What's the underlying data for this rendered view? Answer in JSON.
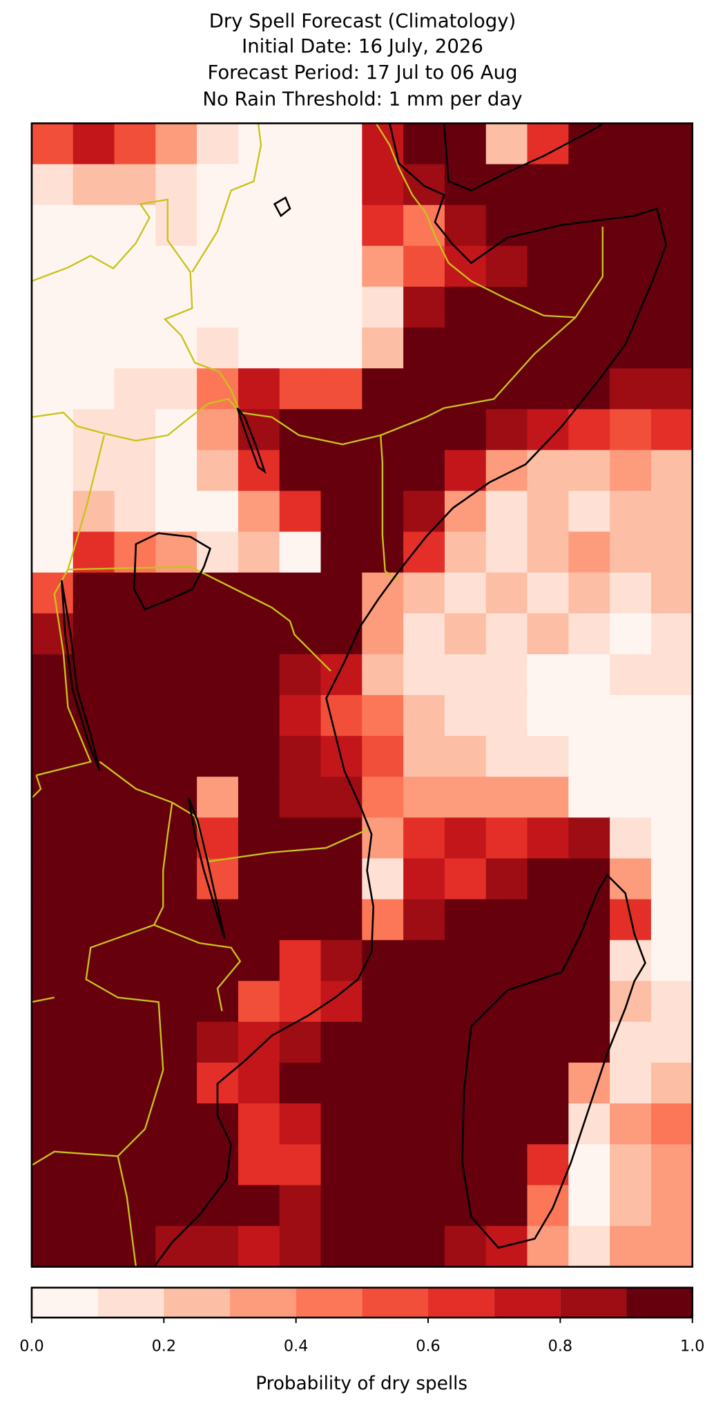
{
  "chart_data": {
    "type": "map-grid",
    "title": [
      "Dry Spell Forecast (Climatology)",
      "Initial Date: 16 July, 2026",
      "Forecast Period: 17 Jul to 06 Aug",
      "No Rain Threshold: 1 mm per day"
    ],
    "grid": [
      [
        0.55,
        0.75,
        0.55,
        0.35,
        0.15,
        0.05,
        0.05,
        0.05,
        0.75,
        0.95,
        0.95,
        0.25,
        0.65,
        0.95,
        0.95,
        0.95
      ],
      [
        0.15,
        0.25,
        0.25,
        0.15,
        0.05,
        0.05,
        0.05,
        0.05,
        0.75,
        0.85,
        0.95,
        0.95,
        0.95,
        0.95,
        0.95,
        0.95
      ],
      [
        0.05,
        0.05,
        0.05,
        0.15,
        0.05,
        0.05,
        0.05,
        0.05,
        0.65,
        0.45,
        0.85,
        0.95,
        0.95,
        0.95,
        0.95,
        0.95
      ],
      [
        0.05,
        0.05,
        0.05,
        0.05,
        0.05,
        0.05,
        0.05,
        0.05,
        0.35,
        0.55,
        0.75,
        0.85,
        0.95,
        0.95,
        0.95,
        0.95
      ],
      [
        0.05,
        0.05,
        0.05,
        0.05,
        0.05,
        0.05,
        0.05,
        0.05,
        0.15,
        0.85,
        0.95,
        0.95,
        0.95,
        0.95,
        0.95,
        0.95
      ],
      [
        0.05,
        0.05,
        0.05,
        0.05,
        0.15,
        0.05,
        0.05,
        0.05,
        0.25,
        0.95,
        0.95,
        0.95,
        0.95,
        0.95,
        0.95,
        0.95
      ],
      [
        0.05,
        0.05,
        0.15,
        0.15,
        0.45,
        0.75,
        0.55,
        0.55,
        0.95,
        0.95,
        0.95,
        0.95,
        0.95,
        0.95,
        0.85,
        0.85
      ],
      [
        0.05,
        0.15,
        0.15,
        0.05,
        0.35,
        0.85,
        0.95,
        0.95,
        0.95,
        0.95,
        0.95,
        0.85,
        0.75,
        0.65,
        0.55,
        0.65
      ],
      [
        0.05,
        0.15,
        0.15,
        0.05,
        0.25,
        0.65,
        0.95,
        0.95,
        0.95,
        0.95,
        0.75,
        0.35,
        0.25,
        0.25,
        0.35,
        0.25
      ],
      [
        0.05,
        0.25,
        0.15,
        0.05,
        0.05,
        0.35,
        0.65,
        0.95,
        0.95,
        0.85,
        0.35,
        0.15,
        0.25,
        0.15,
        0.25,
        0.25
      ],
      [
        0.05,
        0.65,
        0.45,
        0.35,
        0.15,
        0.25,
        0.05,
        0.95,
        0.95,
        0.65,
        0.25,
        0.15,
        0.25,
        0.35,
        0.25,
        0.25
      ],
      [
        0.55,
        0.95,
        0.95,
        0.95,
        0.95,
        0.95,
        0.95,
        0.95,
        0.35,
        0.25,
        0.15,
        0.25,
        0.15,
        0.25,
        0.15,
        0.25
      ],
      [
        0.85,
        0.95,
        0.95,
        0.95,
        0.95,
        0.95,
        0.95,
        0.95,
        0.35,
        0.15,
        0.25,
        0.15,
        0.25,
        0.15,
        0.05,
        0.15
      ],
      [
        0.95,
        0.95,
        0.95,
        0.95,
        0.95,
        0.95,
        0.85,
        0.75,
        0.25,
        0.15,
        0.15,
        0.15,
        0.05,
        0.05,
        0.15,
        0.15
      ],
      [
        0.95,
        0.95,
        0.95,
        0.95,
        0.95,
        0.95,
        0.75,
        0.55,
        0.45,
        0.25,
        0.15,
        0.15,
        0.05,
        0.05,
        0.05,
        0.05
      ],
      [
        0.95,
        0.95,
        0.95,
        0.95,
        0.95,
        0.95,
        0.85,
        0.75,
        0.55,
        0.25,
        0.25,
        0.15,
        0.15,
        0.05,
        0.05,
        0.05
      ],
      [
        0.95,
        0.95,
        0.95,
        0.95,
        0.35,
        0.95,
        0.85,
        0.85,
        0.45,
        0.35,
        0.35,
        0.35,
        0.35,
        0.05,
        0.05,
        0.05
      ],
      [
        0.95,
        0.95,
        0.95,
        0.95,
        0.65,
        0.95,
        0.95,
        0.95,
        0.35,
        0.65,
        0.75,
        0.65,
        0.75,
        0.85,
        0.15,
        0.05
      ],
      [
        0.95,
        0.95,
        0.95,
        0.95,
        0.55,
        0.95,
        0.95,
        0.95,
        0.15,
        0.75,
        0.65,
        0.85,
        0.95,
        0.95,
        0.35,
        0.05
      ],
      [
        0.95,
        0.95,
        0.95,
        0.95,
        0.95,
        0.95,
        0.95,
        0.95,
        0.45,
        0.85,
        0.95,
        0.95,
        0.95,
        0.95,
        0.65,
        0.05
      ],
      [
        0.95,
        0.95,
        0.95,
        0.95,
        0.95,
        0.95,
        0.65,
        0.85,
        0.95,
        0.95,
        0.95,
        0.95,
        0.95,
        0.95,
        0.15,
        0.05
      ],
      [
        0.95,
        0.95,
        0.95,
        0.95,
        0.95,
        0.55,
        0.65,
        0.75,
        0.95,
        0.95,
        0.95,
        0.95,
        0.95,
        0.95,
        0.25,
        0.15
      ],
      [
        0.95,
        0.95,
        0.95,
        0.95,
        0.85,
        0.75,
        0.85,
        0.95,
        0.95,
        0.95,
        0.95,
        0.95,
        0.95,
        0.95,
        0.15,
        0.15
      ],
      [
        0.95,
        0.95,
        0.95,
        0.95,
        0.65,
        0.75,
        0.95,
        0.95,
        0.95,
        0.95,
        0.95,
        0.95,
        0.95,
        0.35,
        0.15,
        0.25
      ],
      [
        0.95,
        0.95,
        0.95,
        0.95,
        0.95,
        0.65,
        0.75,
        0.95,
        0.95,
        0.95,
        0.95,
        0.95,
        0.95,
        0.15,
        0.35,
        0.45
      ],
      [
        0.95,
        0.95,
        0.95,
        0.95,
        0.95,
        0.65,
        0.65,
        0.95,
        0.95,
        0.95,
        0.95,
        0.95,
        0.65,
        0.05,
        0.25,
        0.35
      ],
      [
        0.95,
        0.95,
        0.95,
        0.95,
        0.95,
        0.95,
        0.85,
        0.95,
        0.95,
        0.95,
        0.95,
        0.95,
        0.45,
        0.05,
        0.25,
        0.35
      ],
      [
        0.95,
        0.95,
        0.95,
        0.85,
        0.85,
        0.75,
        0.85,
        0.95,
        0.95,
        0.95,
        0.85,
        0.75,
        0.35,
        0.15,
        0.35,
        0.35
      ]
    ],
    "colorbar": {
      "boundaries": [
        0,
        0.1,
        0.2,
        0.3,
        0.4,
        0.5,
        0.6,
        0.7,
        0.8,
        0.9,
        1
      ],
      "colors": [
        "#fff5f0",
        "#fee1d4",
        "#fcbea5",
        "#fc9c7d",
        "#fb7757",
        "#f14f3a",
        "#e32f27",
        "#c3161b",
        "#9e0d14",
        "#67000d"
      ],
      "ticks": [
        {
          "value": 0,
          "label": "0.0"
        },
        0.2,
        0.4,
        0.6,
        0.8,
        {
          "value": 1,
          "label": "1.0"
        }
      ],
      "label": "Probability of dry spells"
    }
  }
}
